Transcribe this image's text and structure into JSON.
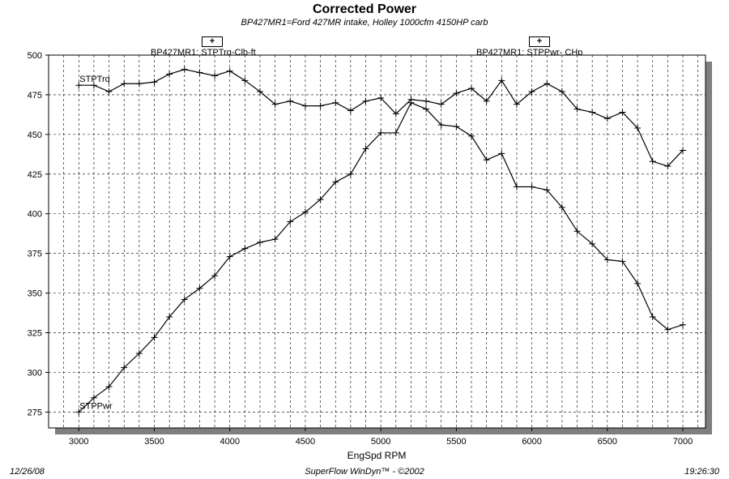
{
  "title": "Corrected Power",
  "subtitle": "BP427MR1=Ford 427MR intake, Holley 1000cfm 4150HP carb",
  "footer": {
    "date": "12/26/08",
    "software": "SuperFlow WinDyn™ - ©2002",
    "time": "19:26:30"
  },
  "legend": [
    {
      "marker": "+",
      "label": "BP427MR1: STPTrq-Clb-ft"
    },
    {
      "marker": "+",
      "label": "BP427MR1: STPPwr- CHp"
    }
  ],
  "chart_data": {
    "type": "line",
    "xlabel": "EngSpd  RPM",
    "ylabel": "",
    "xlim": [
      2800,
      7150
    ],
    "ylim": [
      265,
      500
    ],
    "xticks": [
      3000,
      3500,
      4000,
      4500,
      5000,
      5500,
      6000,
      6500,
      7000
    ],
    "yticks": [
      275,
      300,
      325,
      350,
      375,
      400,
      425,
      450,
      475,
      500
    ],
    "grid": true,
    "x": [
      3000,
      3100,
      3200,
      3300,
      3400,
      3500,
      3600,
      3700,
      3800,
      3900,
      4000,
      4100,
      4200,
      4300,
      4400,
      4500,
      4600,
      4700,
      4800,
      4900,
      5000,
      5100,
      5200,
      5300,
      5400,
      5500,
      5600,
      5700,
      5800,
      5900,
      6000,
      6100,
      6200,
      6300,
      6400,
      6500,
      6600,
      6700,
      6800,
      6900,
      7000
    ],
    "series": [
      {
        "name": "STPTrq",
        "values": [
          481,
          481,
          477,
          482,
          482,
          483,
          488,
          491,
          489,
          487,
          490,
          484,
          477,
          469,
          471,
          468,
          468,
          470,
          465,
          471,
          473,
          463,
          472,
          471,
          469,
          476,
          479,
          471,
          484,
          469,
          477,
          482,
          477,
          466,
          464,
          460,
          464,
          454,
          433,
          430,
          440
        ]
      },
      {
        "name": "STPPwr",
        "values": [
          275,
          284,
          291,
          303,
          312,
          322,
          335,
          346,
          353,
          361,
          373,
          378,
          382,
          384,
          395,
          401,
          409,
          420,
          425,
          441,
          451,
          451,
          470,
          466,
          456,
          455,
          449,
          434,
          438,
          417,
          417,
          415,
          404,
          389,
          381,
          371,
          370,
          356,
          335,
          327,
          330
        ]
      }
    ]
  }
}
